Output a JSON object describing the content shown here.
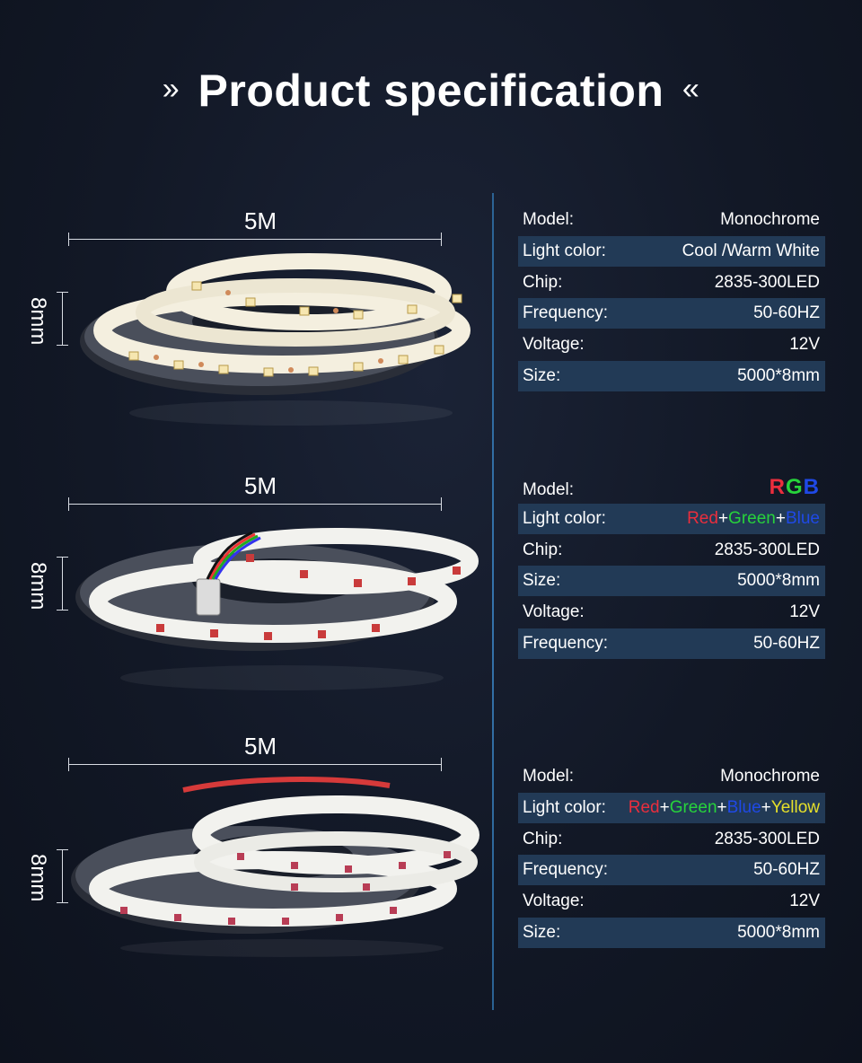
{
  "header": {
    "left_mark": "»",
    "title": "Product specification",
    "right_mark": "«"
  },
  "products": [
    {
      "length_label": "5M",
      "width_label": "8mm",
      "strip_color": "#f4efdf",
      "led_color": "#f6e6b0",
      "specs": [
        {
          "key": "Model:",
          "value": "Monochrome"
        },
        {
          "key": "Light color:",
          "value": "Cool /Warm White"
        },
        {
          "key": "Chip:",
          "value": "2835-300LED"
        },
        {
          "key": "Frequency:",
          "value": "50-60HZ"
        },
        {
          "key": "Voltage:",
          "value": "12V"
        },
        {
          "key": "Size:",
          "value": "5000*8mm"
        }
      ]
    },
    {
      "length_label": "5M",
      "width_label": "8mm",
      "strip_color": "#f2f2ee",
      "led_color": "#c93b3b",
      "model_key": "Model:",
      "model_value_parts": {
        "r": "R",
        "g": "G",
        "b": "B"
      },
      "light_color_key": "Light color:",
      "light_color_parts": {
        "red": "Red",
        "plus1": "+",
        "green": "Green",
        "plus2": "+",
        "blue": "Blue"
      },
      "specs": [
        {
          "key": "Chip:",
          "value": "2835-300LED"
        },
        {
          "key": "Size:",
          "value": "5000*8mm"
        },
        {
          "key": "Voltage:",
          "value": "12V"
        },
        {
          "key": "Frequency:",
          "value": "50-60HZ"
        }
      ]
    },
    {
      "length_label": "5M",
      "width_label": "8mm",
      "strip_color": "#f2f2ee",
      "led_color": "#b83d55",
      "model_key": "Model:",
      "model_value": "Monochrome",
      "light_color_key": "Light color:",
      "light_color_parts": {
        "red": "Red",
        "plus1": "+",
        "green": "Green",
        "plus2": "+",
        "blue": "Blue",
        "plus3": "+",
        "yellow": "Yellow"
      },
      "specs": [
        {
          "key": "Chip:",
          "value": "2835-300LED"
        },
        {
          "key": "Frequency:",
          "value": "50-60HZ"
        },
        {
          "key": "Voltage:",
          "value": "12V"
        },
        {
          "key": "Size:",
          "value": "5000*8mm"
        }
      ]
    }
  ],
  "colors": {
    "background": "#121826",
    "row_shade": "#223a56",
    "divider": "#3a82c2",
    "red": "#ea2e3d",
    "green": "#27d33b",
    "blue": "#1f49e6",
    "yellow": "#e6e02a"
  }
}
